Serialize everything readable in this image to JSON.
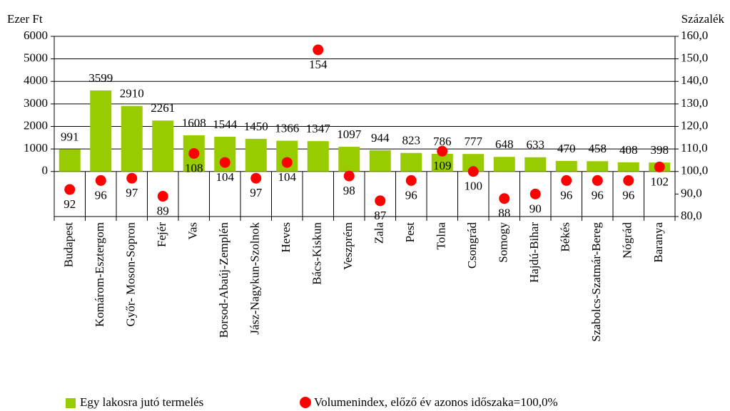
{
  "chart_data": {
    "type": "bar",
    "y_label": "Ezer Ft",
    "y2_label": "Százalék",
    "categories": [
      "Budapest",
      "Komárom-Esztergom",
      "Győr- Moson-Sopron",
      "Fejér",
      "Vas",
      "Borsod-Abaúj-Zemplén",
      "Jász-Nagykun-Szolnok",
      "Heves",
      "Bács-Kiskun",
      "Veszprém",
      "Zala",
      "Pest",
      "Tolna",
      "Csongrád",
      "Somogy",
      "Hajdú-Bihar",
      "Békés",
      "Szabolcs-Szatmár-Bereg",
      "Nógrád",
      "Baranya"
    ],
    "series": [
      {
        "name": "Egy lakosra jutó termelés",
        "type": "bar",
        "color": "#99cc00",
        "values": [
          991,
          3599,
          2910,
          2261,
          1608,
          1544,
          1450,
          1366,
          1347,
          1097,
          944,
          823,
          786,
          777,
          648,
          633,
          470,
          458,
          408,
          398
        ]
      },
      {
        "name": "Volumenindex, előző év azonos időszaka=100,0%",
        "type": "scatter",
        "axis": "y2",
        "color": "#ff0000",
        "values": [
          92,
          96,
          97,
          89,
          108,
          104,
          97,
          104,
          154,
          98,
          87,
          96,
          109,
          100,
          88,
          90,
          96,
          96,
          96,
          102
        ]
      }
    ],
    "ylim": [
      -2000,
      6000
    ],
    "yticks": [
      0,
      1000,
      2000,
      3000,
      4000,
      5000,
      6000
    ],
    "y2lim": [
      80,
      160
    ],
    "y2ticks": [
      {
        "value": 80,
        "label": "80,0"
      },
      {
        "value": 90,
        "label": "90,0"
      },
      {
        "value": 100,
        "label": "100,0"
      },
      {
        "value": 110,
        "label": "110,0"
      },
      {
        "value": 120,
        "label": "120,0"
      },
      {
        "value": 130,
        "label": "130,0"
      },
      {
        "value": 140,
        "label": "140,0"
      },
      {
        "value": 150,
        "label": "150,0"
      },
      {
        "value": 160,
        "label": "160,0"
      }
    ],
    "legend": "bottom"
  }
}
